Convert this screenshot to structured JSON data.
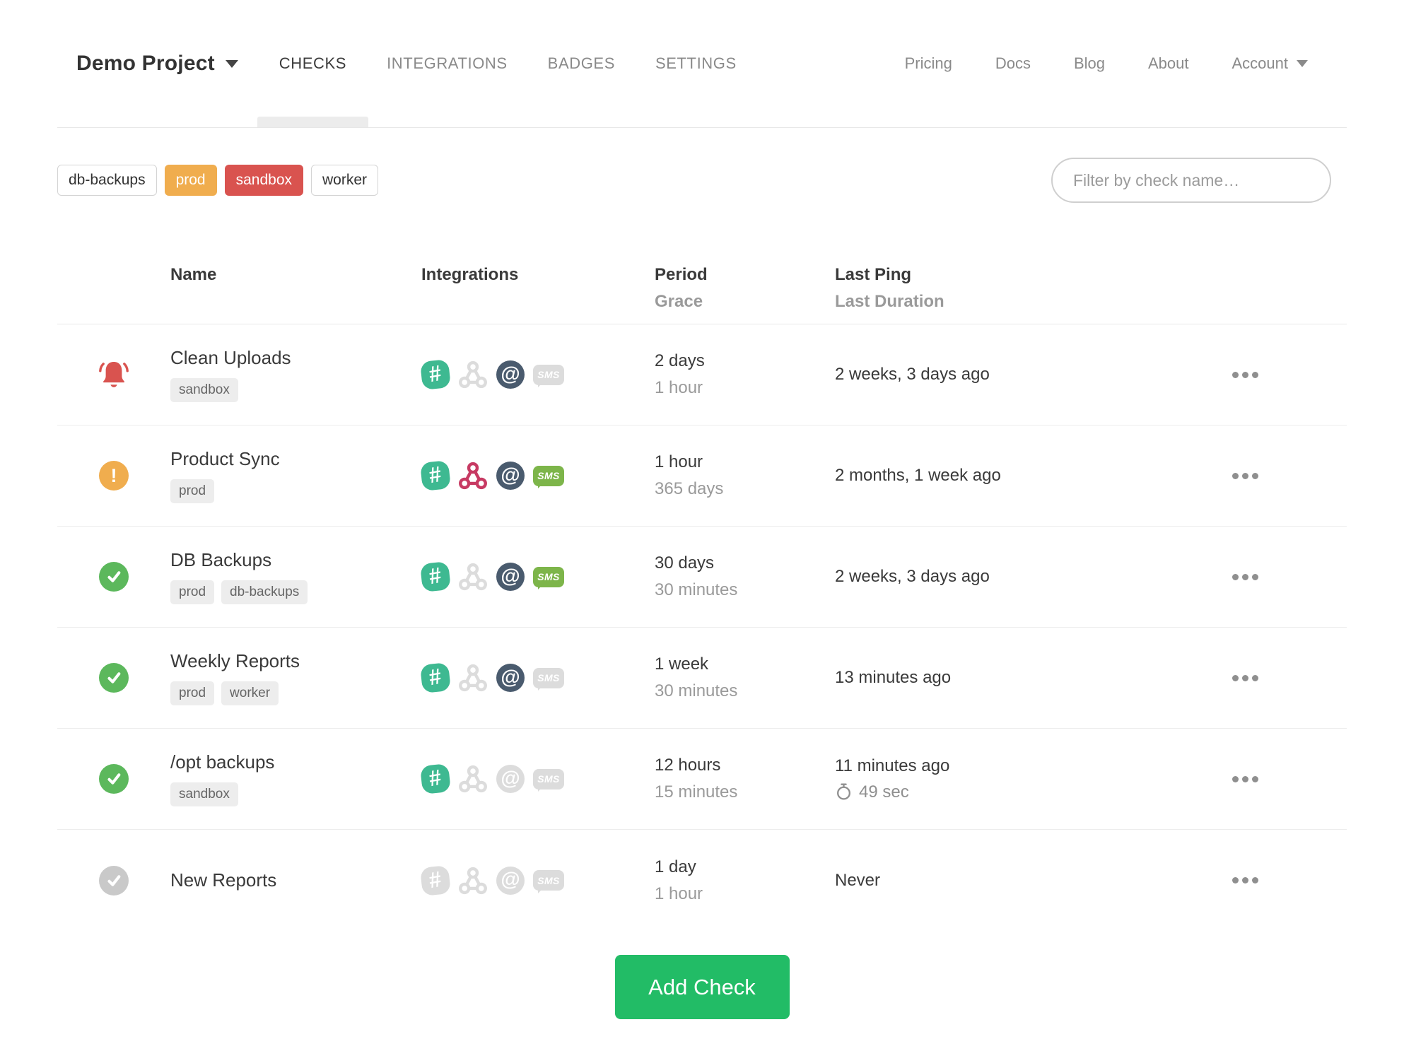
{
  "nav": {
    "project": "Demo Project",
    "tabs": [
      {
        "label": "CHECKS",
        "active": true
      },
      {
        "label": "INTEGRATIONS",
        "active": false
      },
      {
        "label": "BADGES",
        "active": false
      },
      {
        "label": "SETTINGS",
        "active": false
      }
    ],
    "links": [
      "Pricing",
      "Docs",
      "Blog",
      "About"
    ],
    "account_label": "Account"
  },
  "filters": {
    "tags": [
      {
        "label": "db-backups",
        "style": "outline"
      },
      {
        "label": "prod",
        "style": "orange"
      },
      {
        "label": "sandbox",
        "style": "red"
      },
      {
        "label": "worker",
        "style": "outline"
      }
    ],
    "search_placeholder": "Filter by check name…"
  },
  "table": {
    "headers": {
      "name": "Name",
      "integrations": "Integrations",
      "period": "Period",
      "grace": "Grace",
      "last_ping": "Last Ping",
      "last_duration": "Last Duration"
    },
    "rows": [
      {
        "status": "alert",
        "name": "Clean Uploads",
        "tags": [
          "sandbox"
        ],
        "integrations": {
          "slack": true,
          "webhook": false,
          "email": true,
          "sms": false
        },
        "period": "2 days",
        "grace": "1 hour",
        "last_ping": "2 weeks, 3 days ago",
        "last_duration": ""
      },
      {
        "status": "warn",
        "name": "Product Sync",
        "tags": [
          "prod"
        ],
        "integrations": {
          "slack": true,
          "webhook": true,
          "email": true,
          "sms": true
        },
        "period": "1 hour",
        "grace": "365 days",
        "last_ping": "2 months, 1 week ago",
        "last_duration": ""
      },
      {
        "status": "ok",
        "name": "DB Backups",
        "tags": [
          "prod",
          "db-backups"
        ],
        "integrations": {
          "slack": true,
          "webhook": false,
          "email": true,
          "sms": true
        },
        "period": "30 days",
        "grace": "30 minutes",
        "last_ping": "2 weeks, 3 days ago",
        "last_duration": ""
      },
      {
        "status": "ok",
        "name": "Weekly Reports",
        "tags": [
          "prod",
          "worker"
        ],
        "integrations": {
          "slack": true,
          "webhook": false,
          "email": true,
          "sms": false
        },
        "period": "1 week",
        "grace": "30 minutes",
        "last_ping": "13 minutes ago",
        "last_duration": ""
      },
      {
        "status": "ok",
        "name": "/opt backups",
        "tags": [
          "sandbox"
        ],
        "integrations": {
          "slack": true,
          "webhook": false,
          "email": false,
          "sms": false
        },
        "period": "12 hours",
        "grace": "15 minutes",
        "last_ping": "11 minutes ago",
        "last_duration": "49 sec"
      },
      {
        "status": "new",
        "name": "New Reports",
        "tags": [],
        "integrations": {
          "slack": false,
          "webhook": false,
          "email": false,
          "sms": false
        },
        "period": "1 day",
        "grace": "1 hour",
        "last_ping": "Never",
        "last_duration": ""
      }
    ]
  },
  "add_check_label": "Add Check",
  "icons": {
    "slack_glyph": "#",
    "email_glyph": "@",
    "sms_label": "SMS",
    "warn_glyph": "!"
  },
  "colors": {
    "accent": "#22bc66",
    "status_ok": "#5cb85c",
    "status_warn": "#f0ad4e",
    "status_alert": "#d9534f",
    "status_new": "#c9c9c9",
    "slack_green": "#3eb991",
    "webhook_crimson": "#c73a63",
    "email_slate": "#4a5b6e",
    "sms_green": "#7db54a",
    "inactive_gray": "#dcdcdc"
  }
}
